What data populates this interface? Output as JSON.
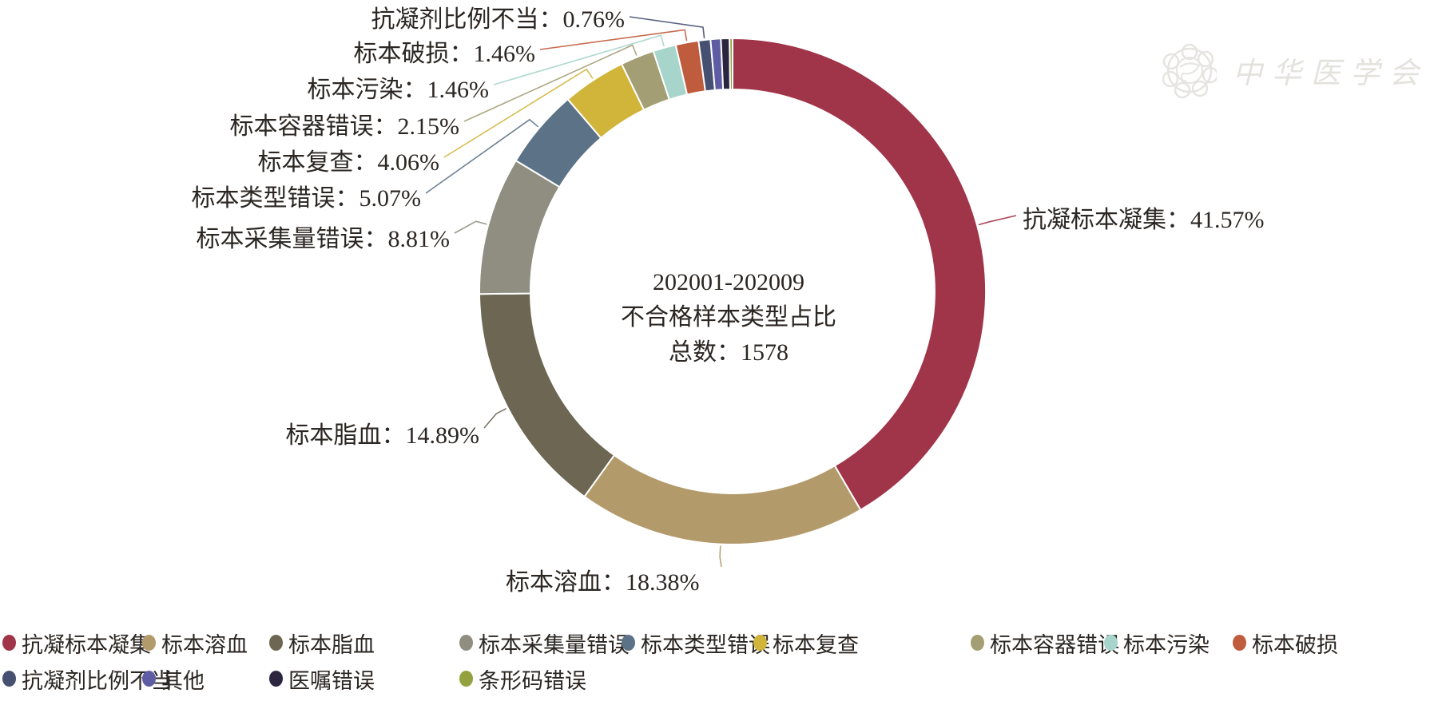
{
  "watermark": {
    "text": "中华医学会"
  },
  "center": {
    "line1": "202001-202009",
    "line2": "不合格样本类型占比",
    "line3": "总数：1578"
  },
  "chart_data": {
    "type": "pie",
    "subtype": "donut",
    "title": "202001-202009 不合格样本类型占比",
    "total_label": "总数：1578",
    "total": 1578,
    "unit": "%",
    "start_angle_deg": 0,
    "direction": "clockwise",
    "label_format": "{label}：{value}%",
    "legend_position": "bottom",
    "segments": [
      {
        "label": "抗凝标本凝集",
        "value": 41.57,
        "color": "#a03449",
        "callout": true
      },
      {
        "label": "标本溶血",
        "value": 18.38,
        "color": "#b39a6b",
        "callout": true
      },
      {
        "label": "标本脂血",
        "value": 14.89,
        "color": "#6c6653",
        "callout": true
      },
      {
        "label": "标本采集量错误",
        "value": 8.81,
        "color": "#8f8e81",
        "callout": true
      },
      {
        "label": "标本类型错误",
        "value": 5.07,
        "color": "#5c7387",
        "callout": true
      },
      {
        "label": "标本复查",
        "value": 4.06,
        "color": "#d1b53b",
        "callout": true
      },
      {
        "label": "标本容器错误",
        "value": 2.15,
        "color": "#a49e74",
        "callout": true
      },
      {
        "label": "标本污染",
        "value": 1.46,
        "color": "#a7d5cc",
        "callout": true
      },
      {
        "label": "标本破损",
        "value": 1.46,
        "color": "#c05c3e",
        "callout": true
      },
      {
        "label": "抗凝剂比例不当",
        "value": 0.76,
        "color": "#465070",
        "callout": true
      },
      {
        "label": "其他",
        "value": 0.65,
        "color": "#5e5da3",
        "callout": false
      },
      {
        "label": "医嘱错误",
        "value": 0.55,
        "color": "#2b2540",
        "callout": false
      },
      {
        "label": "条形码错误",
        "value": 0.19,
        "color": "#93a23f",
        "callout": false
      }
    ]
  }
}
